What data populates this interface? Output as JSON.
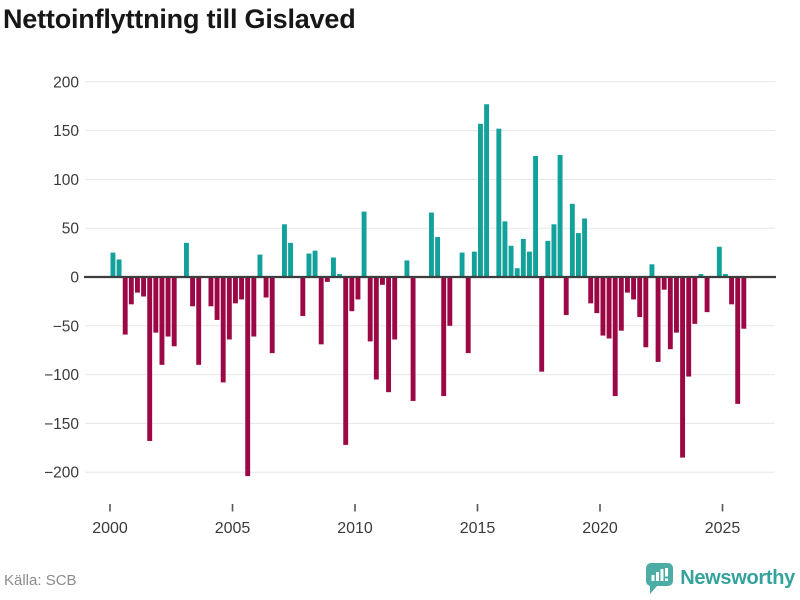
{
  "title": "Nettoinflyttning till Gislaved",
  "footer": {
    "source": "Källa: SCB",
    "brand": "Newsworthy"
  },
  "chart_data": {
    "type": "bar",
    "title": "Nettoinflyttning till Gislaved",
    "grid": true,
    "legend": false,
    "colors": {
      "positive": "#12A19B",
      "negative": "#9C0845",
      "zero_line": "#3D3D3D",
      "grid_line": "#E7E7E7",
      "tick_label": "#3A3A3A"
    },
    "x_axis": {
      "start_year": 2000,
      "frequency": "quarterly",
      "tick_years": [
        2000,
        2005,
        2010,
        2015,
        2020,
        2025
      ]
    },
    "y_axis": {
      "ticks": [
        200,
        150,
        100,
        50,
        0,
        -50,
        -100,
        -150,
        -200
      ],
      "range": [
        -220,
        210
      ]
    },
    "series": [
      {
        "name": "Nettoinflyttning",
        "start": "2000Q1",
        "values": [
          25,
          18,
          -59,
          -28,
          -16,
          -20,
          -168,
          -57,
          -90,
          -61,
          -71,
          0,
          35,
          -30,
          -90,
          0,
          -30,
          -44,
          -108,
          -64,
          -27,
          -23,
          -204,
          -61,
          23,
          -21,
          -78,
          0,
          54,
          35,
          0,
          -40,
          24,
          27,
          -69,
          -5,
          20,
          3,
          -172,
          -35,
          -23,
          67,
          -66,
          -105,
          -8,
          -118,
          -64,
          0,
          17,
          -127,
          0,
          0,
          66,
          41,
          -122,
          -50,
          0,
          25,
          -78,
          26,
          157,
          177,
          0,
          152,
          57,
          32,
          9,
          39,
          26,
          124,
          -97,
          37,
          54,
          125,
          -39,
          75,
          45,
          60,
          -27,
          -37,
          -60,
          -63,
          -122,
          -55,
          -16,
          -23,
          -41,
          -72,
          13,
          -87,
          -13,
          -74,
          -57,
          -185,
          -102,
          -48,
          3,
          -36,
          0,
          31,
          3,
          -28,
          -130,
          -53
        ]
      }
    ]
  }
}
